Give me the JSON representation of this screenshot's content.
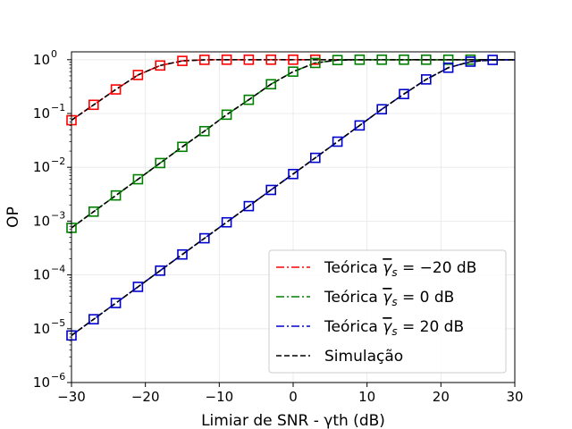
{
  "chart_data": {
    "type": "line",
    "xlabel": "Limiar de SNR - γth (dB)",
    "ylabel": "OP",
    "xlim": [
      -30,
      30
    ],
    "ylim": [
      1e-06,
      1.4
    ],
    "yscale": "log",
    "grid": true,
    "legend_position": "bottom-right",
    "x_ticks": [
      -30,
      -20,
      -10,
      0,
      10,
      20,
      30
    ],
    "x_tick_labels": [
      "−30",
      "−20",
      "−10",
      "0",
      "10",
      "20",
      "30"
    ],
    "y_ticks": [
      1e-06,
      1e-05,
      0.0001,
      0.001,
      0.01,
      0.1,
      1
    ],
    "y_tick_labels": [
      {
        "base": "10",
        "exp": "−6"
      },
      {
        "base": "10",
        "exp": "−5"
      },
      {
        "base": "10",
        "exp": "−4"
      },
      {
        "base": "10",
        "exp": "−3"
      },
      {
        "base": "10",
        "exp": "−2"
      },
      {
        "base": "10",
        "exp": "−1"
      },
      {
        "base": "10",
        "exp": "0"
      }
    ],
    "series": [
      {
        "name": "Teórica γ̄s = −20 dB",
        "legend_parts": {
          "prefix": "Teórica ",
          "gamma": "γ",
          "sub": "s",
          "rest": " = −20 dB"
        },
        "color": "#ff0000",
        "style": "dashdot",
        "x": [
          -30,
          -27,
          -24,
          -21,
          -18,
          -15,
          -12,
          -9,
          -6,
          -3,
          0,
          3
        ],
        "y": [
          0.075,
          0.145,
          0.28,
          0.52,
          0.78,
          0.95,
          0.995,
          1.0,
          1.0,
          1.0,
          1.0,
          1.0
        ]
      },
      {
        "name": "Teórica γ̄s = 0 dB",
        "legend_parts": {
          "prefix": "Teórica ",
          "gamma": "γ",
          "sub": "s",
          "rest": " = 0 dB"
        },
        "color": "#008000",
        "style": "dashdot",
        "x": [
          -30,
          -27,
          -24,
          -21,
          -18,
          -15,
          -12,
          -9,
          -6,
          -3,
          0,
          3,
          6,
          9,
          12,
          15,
          18,
          21,
          24
        ],
        "y": [
          0.00075,
          0.0015,
          0.003,
          0.006,
          0.012,
          0.024,
          0.047,
          0.095,
          0.18,
          0.35,
          0.6,
          0.87,
          0.985,
          1.0,
          1.0,
          1.0,
          1.0,
          1.0,
          1.0
        ]
      },
      {
        "name": "Teórica γ̄s = 20 dB",
        "legend_parts": {
          "prefix": "Teórica ",
          "gamma": "γ",
          "sub": "s",
          "rest": " = 20 dB"
        },
        "color": "#0000cd",
        "style": "dashdot",
        "x": [
          -30,
          -27,
          -24,
          -21,
          -18,
          -15,
          -12,
          -9,
          -6,
          -3,
          0,
          3,
          6,
          9,
          12,
          15,
          18,
          21,
          24,
          27
        ],
        "y": [
          7.5e-06,
          1.5e-05,
          3e-05,
          6e-05,
          0.00012,
          0.00024,
          0.00048,
          0.00095,
          0.0019,
          0.0038,
          0.0075,
          0.015,
          0.03,
          0.06,
          0.12,
          0.23,
          0.43,
          0.71,
          0.92,
          0.99
        ]
      },
      {
        "name": "Simulação",
        "color": "#000000",
        "style": "dashed"
      }
    ]
  }
}
